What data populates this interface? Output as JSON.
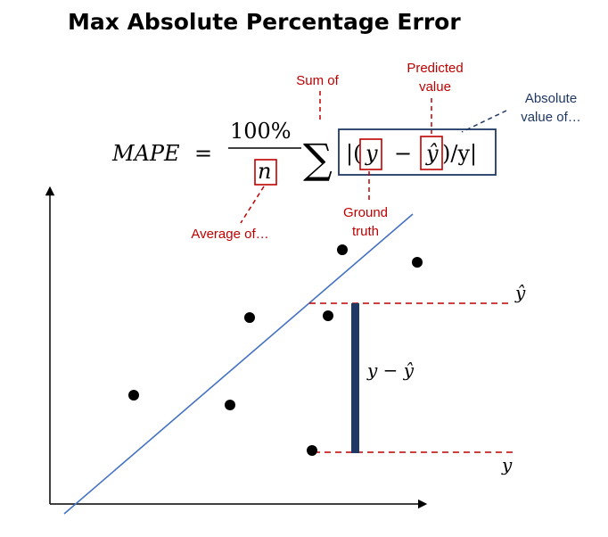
{
  "title": "Max Absolute Percentage Error",
  "formula": {
    "lhs": "MAPE",
    "equals": "=",
    "numerator": "100%",
    "denominator": "n",
    "sigma": "∑",
    "abs_open": "|(",
    "y": "y",
    "minus": "−",
    "y_hat": "ŷ",
    "tail": ")/y|"
  },
  "annotations": {
    "sum_of": "Sum of",
    "predicted_line1": "Predicted",
    "predicted_line2": "value",
    "absolute_line1": "Absolute",
    "absolute_line2": "value of…",
    "ground_line1": "Ground",
    "ground_line2": "truth",
    "average_of": "Average of…"
  },
  "plot_labels": {
    "y_hat": "ŷ",
    "y": "y",
    "residual": "y − ŷ"
  },
  "colors": {
    "annotation_red": "#c00000",
    "annotation_navy": "#1f3864",
    "fit_line": "#4472c4",
    "residual_bar": "#1f3864",
    "points": "#000000"
  }
}
